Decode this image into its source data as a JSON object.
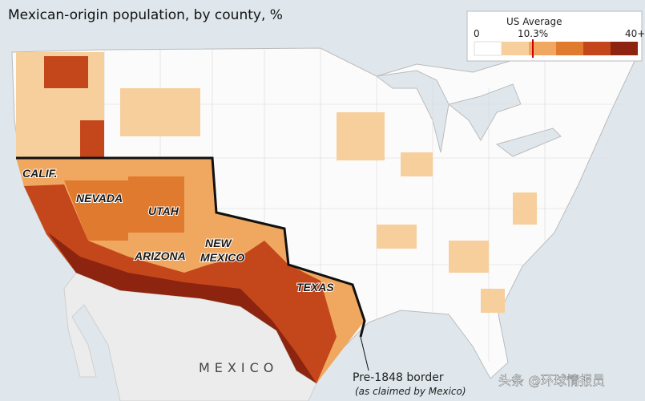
{
  "header": {
    "title": "Mexican-origin population, by county, %"
  },
  "legend": {
    "title": "US Average",
    "min_label": "0",
    "avg_label": "10.3%",
    "max_label": "40+"
  },
  "map": {
    "labels": [
      "CALIF.",
      "NEVADA",
      "UTAH",
      "ARIZONA",
      "NEW",
      "MEXICO",
      "TEXAS"
    ],
    "country_label": "MEXICO"
  },
  "annotation": {
    "line1": "Pre-1848 border",
    "line2": "(as claimed by Mexico)"
  },
  "watermark": "头条 @环球情报员"
}
